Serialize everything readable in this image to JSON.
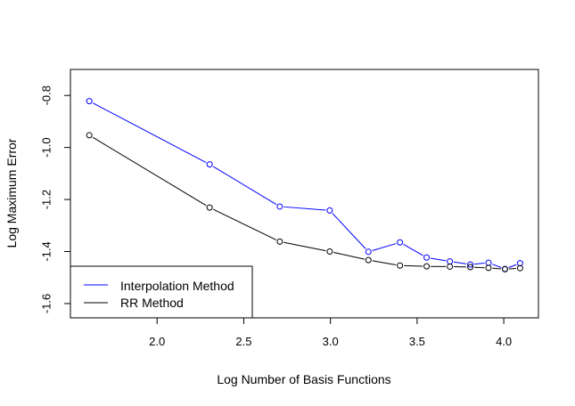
{
  "chart_data": {
    "type": "line",
    "title": "",
    "xlabel": "Log Number of Basis Functions",
    "ylabel": "Log Maximum Error",
    "xlim": [
      1.5,
      4.2
    ],
    "ylim": [
      -1.655,
      -0.7
    ],
    "x_ticks": [
      2.0,
      2.5,
      3.0,
      3.5,
      4.0
    ],
    "x_tick_labels": [
      "2.0",
      "2.5",
      "3.0",
      "3.5",
      "4.0"
    ],
    "y_ticks": [
      -0.8,
      -1.0,
      -1.2,
      -1.4,
      -1.6
    ],
    "y_tick_labels": [
      "-0.8",
      "-1.0",
      "-1.2",
      "-1.4",
      "-1.6"
    ],
    "grid": false,
    "legend_position": "bottom-left",
    "series": [
      {
        "name": "Interpolation Method",
        "color": "#0000ff",
        "marker": "open-circle",
        "x": [
          1.609,
          2.303,
          2.708,
          2.996,
          3.219,
          3.401,
          3.555,
          3.689,
          3.807,
          3.912,
          4.007,
          4.094
        ],
        "y": [
          -0.822,
          -1.065,
          -1.227,
          -1.242,
          -1.401,
          -1.365,
          -1.423,
          -1.438,
          -1.45,
          -1.443,
          -1.467,
          -1.445
        ]
      },
      {
        "name": "RR Method",
        "color": "#000000",
        "marker": "open-circle",
        "x": [
          1.609,
          2.303,
          2.708,
          2.996,
          3.219,
          3.401,
          3.555,
          3.689,
          3.807,
          3.912,
          4.007,
          4.094
        ],
        "y": [
          -0.953,
          -1.231,
          -1.362,
          -1.4,
          -1.433,
          -1.454,
          -1.457,
          -1.458,
          -1.46,
          -1.463,
          -1.468,
          -1.464
        ]
      }
    ]
  }
}
